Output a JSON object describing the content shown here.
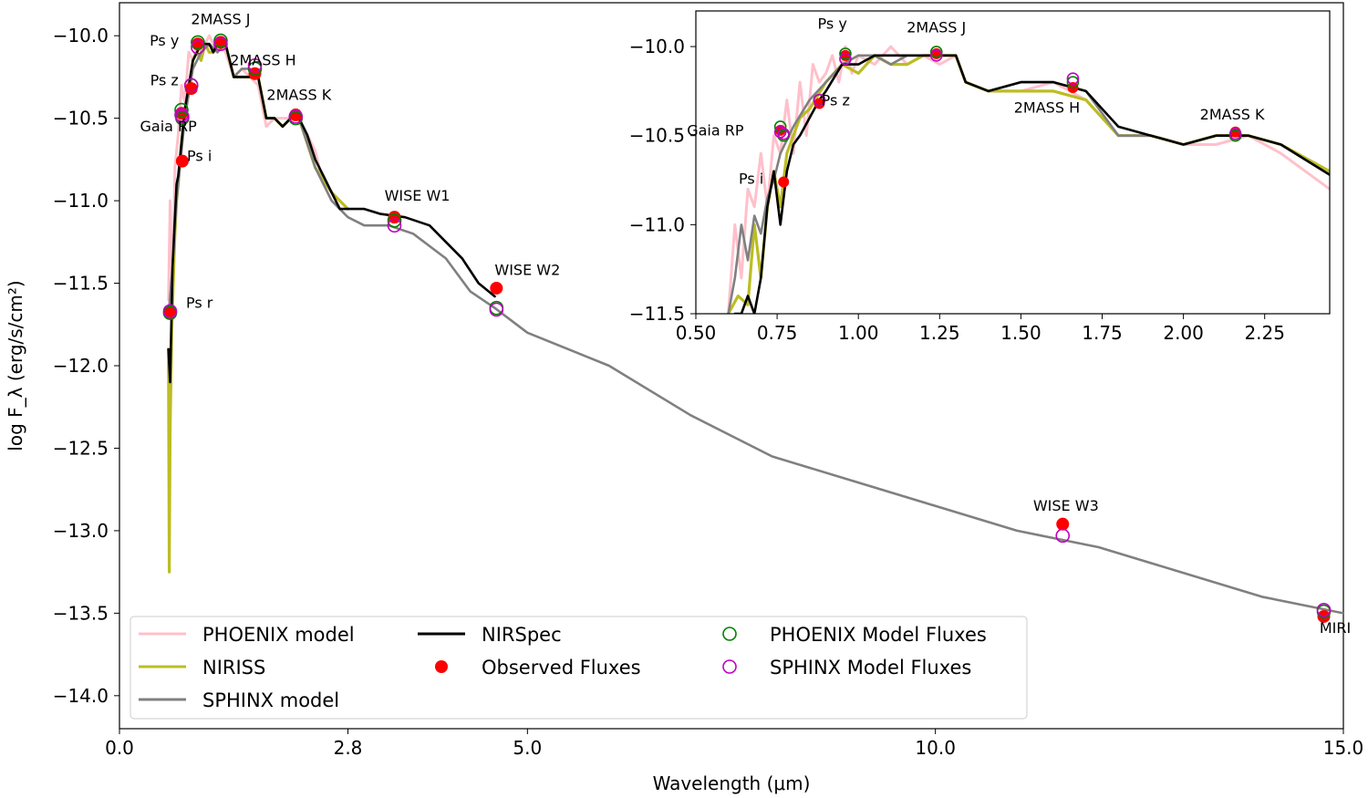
{
  "chart_data": [
    {
      "id": "main",
      "type": "line",
      "title": "",
      "xlabel": "Wavelength (μm)",
      "ylabel": "log F_λ (erg/s/cm²)",
      "xlim": [
        0,
        15
      ],
      "ylim": [
        -14.2,
        -9.8
      ],
      "xticks": [
        0,
        2.8,
        5,
        10,
        15
      ],
      "xtick_labels": [
        "0.0",
        "2.8",
        "5.0",
        "10.0",
        "15.0"
      ],
      "yticks": [
        -14.0,
        -13.5,
        -13.0,
        -12.5,
        -12.0,
        -11.5,
        -11.0,
        -10.5,
        -10.0
      ],
      "ytick_labels": [
        "−14.0",
        "−13.5",
        "−13.0",
        "−12.5",
        "−12.0",
        "−11.5",
        "−11.0",
        "−10.5",
        "−10.0"
      ],
      "series": [
        {
          "name": "PHOENIX model",
          "color": "#ffc0cb",
          "x": [
            0.6,
            0.62,
            0.65,
            0.68,
            0.72,
            0.76,
            0.8,
            0.85,
            0.9,
            0.95,
            1.0,
            1.05,
            1.1,
            1.2,
            1.25,
            1.3,
            1.4,
            1.5,
            1.6,
            1.7,
            1.8,
            1.9,
            2.0,
            2.1,
            2.2,
            2.3,
            2.4,
            2.5
          ],
          "y": [
            -11.6,
            -11.0,
            -11.6,
            -10.8,
            -10.6,
            -10.3,
            -10.4,
            -10.1,
            -10.15,
            -10.05,
            -10.1,
            -10.05,
            -10.0,
            -10.1,
            -10.05,
            -10.1,
            -10.25,
            -10.2,
            -10.25,
            -10.3,
            -10.55,
            -10.5,
            -10.5,
            -10.5,
            -10.5,
            -10.6,
            -10.7,
            -10.9
          ]
        },
        {
          "name": "NIRISS",
          "color": "#bcbd22",
          "x": [
            0.6,
            0.61,
            0.62,
            0.64,
            0.66,
            0.68,
            0.7,
            0.72,
            0.75,
            0.8,
            0.85,
            0.9,
            0.95,
            1.0,
            1.05,
            1.1,
            1.15,
            1.2,
            1.3,
            1.4,
            1.5,
            1.6,
            1.7,
            1.8,
            1.9,
            2.0,
            2.1,
            2.2,
            2.4,
            2.6,
            2.8
          ],
          "y": [
            -11.9,
            -13.25,
            -12.4,
            -11.8,
            -11.5,
            -11.2,
            -11.0,
            -10.9,
            -10.7,
            -10.45,
            -10.35,
            -10.15,
            -10.1,
            -10.15,
            -10.05,
            -10.1,
            -10.1,
            -10.05,
            -10.05,
            -10.25,
            -10.25,
            -10.25,
            -10.25,
            -10.5,
            -10.5,
            -10.55,
            -10.5,
            -10.5,
            -10.8,
            -10.95,
            -11.05
          ]
        },
        {
          "name": "SPHINX model",
          "color": "#808080",
          "x": [
            0.6,
            0.65,
            0.7,
            0.75,
            0.8,
            0.9,
            1.0,
            1.1,
            1.2,
            1.3,
            1.4,
            1.5,
            1.6,
            1.7,
            1.8,
            1.9,
            2.0,
            2.1,
            2.2,
            2.4,
            2.6,
            2.8,
            3.0,
            3.3,
            3.6,
            4.0,
            4.3,
            4.6,
            5.0,
            6.0,
            7.0,
            8.0,
            9.0,
            10.0,
            11.0,
            12.0,
            13.0,
            14.0,
            15.0
          ],
          "y": [
            -11.7,
            -11.4,
            -11.0,
            -10.75,
            -10.5,
            -10.2,
            -10.1,
            -10.05,
            -10.1,
            -10.05,
            -10.25,
            -10.2,
            -10.2,
            -10.25,
            -10.5,
            -10.5,
            -10.55,
            -10.5,
            -10.5,
            -10.8,
            -11.0,
            -11.1,
            -11.15,
            -11.15,
            -11.2,
            -11.35,
            -11.55,
            -11.65,
            -11.8,
            -12.0,
            -12.3,
            -12.55,
            -12.7,
            -12.85,
            -13.0,
            -13.1,
            -13.25,
            -13.4,
            -13.5
          ]
        },
        {
          "name": "NIRSpec",
          "color": "#000000",
          "x": [
            0.6,
            0.62,
            0.65,
            0.68,
            0.7,
            0.72,
            0.75,
            0.8,
            0.85,
            0.9,
            0.95,
            1.0,
            1.05,
            1.1,
            1.15,
            1.2,
            1.3,
            1.4,
            1.5,
            1.6,
            1.7,
            1.8,
            1.9,
            2.0,
            2.1,
            2.2,
            2.3,
            2.4,
            2.5,
            2.6,
            2.7,
            2.8,
            3.0,
            3.2,
            3.5,
            3.8,
            4.0,
            4.2,
            4.4,
            4.6
          ],
          "y": [
            -11.9,
            -12.1,
            -11.4,
            -11.1,
            -10.9,
            -10.85,
            -10.7,
            -10.45,
            -10.3,
            -10.15,
            -10.1,
            -10.05,
            -10.05,
            -10.05,
            -10.1,
            -10.05,
            -10.05,
            -10.25,
            -10.25,
            -10.25,
            -10.25,
            -10.5,
            -10.5,
            -10.55,
            -10.5,
            -10.5,
            -10.6,
            -10.75,
            -10.85,
            -10.95,
            -11.05,
            -11.05,
            -11.05,
            -11.08,
            -11.1,
            -11.15,
            -11.25,
            -11.35,
            -11.5,
            -11.58
          ]
        }
      ],
      "observed_fluxes": {
        "x": [
          0.62,
          0.76,
          0.77,
          0.88,
          0.96,
          1.24,
          1.66,
          2.16,
          3.37,
          4.62,
          11.56,
          14.76
        ],
        "y": [
          -11.68,
          -10.47,
          -10.76,
          -10.32,
          -10.05,
          -10.04,
          -10.23,
          -10.48,
          -11.1,
          -11.53,
          -12.96,
          -13.52
        ]
      },
      "phoenix_model_fluxes": {
        "x": [
          0.62,
          0.76,
          0.77,
          0.88,
          0.96,
          1.24,
          1.66,
          2.16,
          3.37,
          4.62,
          14.76
        ],
        "y": [
          -11.68,
          -10.45,
          -10.5,
          -10.3,
          -10.04,
          -10.03,
          -10.2,
          -10.5,
          -11.12,
          -11.65,
          -13.49
        ]
      },
      "sphinx_model_fluxes": {
        "x": [
          0.62,
          0.76,
          0.77,
          0.88,
          0.96,
          1.24,
          1.66,
          2.16,
          3.37,
          4.62,
          11.56,
          14.76
        ],
        "y": [
          -11.67,
          -10.48,
          -10.49,
          -10.3,
          -10.07,
          -10.05,
          -10.18,
          -10.49,
          -11.15,
          -11.66,
          -13.03,
          -13.48
        ]
      },
      "annotations": [
        {
          "text": "2MASS J",
          "x": 1.24,
          "y": -9.93
        },
        {
          "text": "Ps y",
          "x": 0.55,
          "y": -10.06
        },
        {
          "text": "2MASS H",
          "x": 1.76,
          "y": -10.18
        },
        {
          "text": "Ps z",
          "x": 0.55,
          "y": -10.3
        },
        {
          "text": "2MASS K",
          "x": 2.2,
          "y": -10.39
        },
        {
          "text": "Gaia RP",
          "x": 0.6,
          "y": -10.58
        },
        {
          "text": "Ps i",
          "x": 0.98,
          "y": -10.76
        },
        {
          "text": "WISE W1",
          "x": 3.65,
          "y": -11.0
        },
        {
          "text": "WISE W2",
          "x": 5.0,
          "y": -11.45
        },
        {
          "text": "Ps r",
          "x": 0.98,
          "y": -11.65
        },
        {
          "text": "WISE W3",
          "x": 11.6,
          "y": -12.88
        },
        {
          "text": "MIRI",
          "x": 14.9,
          "y": -13.62
        }
      ],
      "legend": {
        "placement": "lower-left",
        "entries": [
          {
            "label": "PHOENIX model",
            "kind": "line",
            "color": "#ffc0cb"
          },
          {
            "label": "NIRISS",
            "kind": "line",
            "color": "#bcbd22"
          },
          {
            "label": "SPHINX model",
            "kind": "line",
            "color": "#808080"
          },
          {
            "label": "NIRSpec",
            "kind": "line",
            "color": "#000000"
          },
          {
            "label": "Observed Fluxes",
            "kind": "filled-dot",
            "color": "#ff0000"
          },
          {
            "label": "PHOENIX Model Fluxes",
            "kind": "open-circle",
            "color": "#008000"
          },
          {
            "label": "SPHINX Model Fluxes",
            "kind": "open-circle",
            "color": "#bf00bf"
          }
        ]
      }
    },
    {
      "id": "inset",
      "type": "line",
      "xlim": [
        0.5,
        2.45
      ],
      "ylim": [
        -11.5,
        -9.8
      ],
      "xticks": [
        0.5,
        0.75,
        1.0,
        1.25,
        1.5,
        1.75,
        2.0,
        2.25
      ],
      "xtick_labels": [
        "0.50",
        "0.75",
        "1.00",
        "1.25",
        "1.50",
        "1.75",
        "2.00",
        "2.25"
      ],
      "yticks": [
        -11.5,
        -11.0,
        -10.5,
        -10.0
      ],
      "ytick_labels": [
        "−11.5",
        "−11.0",
        "−10.5",
        "−10.0"
      ],
      "series": [
        {
          "name": "PHOENIX model",
          "color": "#ffc0cb",
          "x": [
            0.6,
            0.62,
            0.64,
            0.66,
            0.68,
            0.7,
            0.72,
            0.74,
            0.76,
            0.78,
            0.8,
            0.82,
            0.84,
            0.86,
            0.88,
            0.9,
            0.92,
            0.94,
            0.96,
            0.98,
            1.0,
            1.05,
            1.1,
            1.15,
            1.2,
            1.25,
            1.3,
            1.33,
            1.4,
            1.5,
            1.6,
            1.7,
            1.8,
            1.9,
            2.0,
            2.1,
            2.2,
            2.3,
            2.45
          ],
          "y": [
            -11.5,
            -11.0,
            -11.3,
            -10.8,
            -10.9,
            -10.6,
            -10.9,
            -10.5,
            -10.6,
            -10.3,
            -10.6,
            -10.2,
            -10.5,
            -10.1,
            -10.2,
            -10.15,
            -10.05,
            -10.2,
            -10.0,
            -10.15,
            -10.05,
            -10.1,
            -10.0,
            -10.1,
            -10.05,
            -10.1,
            -10.05,
            -10.2,
            -10.25,
            -10.25,
            -10.2,
            -10.3,
            -10.5,
            -10.5,
            -10.55,
            -10.55,
            -10.5,
            -10.6,
            -10.8
          ]
        },
        {
          "name": "NIRISS",
          "color": "#bcbd22",
          "x": [
            0.6,
            0.63,
            0.66,
            0.68,
            0.7,
            0.72,
            0.74,
            0.76,
            0.78,
            0.8,
            0.82,
            0.85,
            0.9,
            0.95,
            1.0,
            1.05,
            1.1,
            1.15,
            1.2,
            1.25,
            1.3,
            1.33,
            1.4,
            1.5,
            1.6,
            1.7,
            1.8,
            1.9,
            2.0,
            2.1,
            2.2,
            2.3,
            2.45
          ],
          "y": [
            -11.5,
            -11.4,
            -11.45,
            -11.0,
            -11.3,
            -10.9,
            -10.7,
            -10.9,
            -10.6,
            -10.5,
            -10.4,
            -10.35,
            -10.2,
            -10.1,
            -10.15,
            -10.05,
            -10.1,
            -10.1,
            -10.05,
            -10.05,
            -10.05,
            -10.2,
            -10.25,
            -10.25,
            -10.25,
            -10.3,
            -10.5,
            -10.5,
            -10.55,
            -10.5,
            -10.5,
            -10.55,
            -10.7
          ]
        },
        {
          "name": "SPHINX model",
          "color": "#808080",
          "x": [
            0.6,
            0.62,
            0.64,
            0.66,
            0.68,
            0.7,
            0.72,
            0.74,
            0.76,
            0.8,
            0.85,
            0.9,
            0.95,
            1.0,
            1.05,
            1.1,
            1.15,
            1.2,
            1.25,
            1.3,
            1.33,
            1.4,
            1.5,
            1.6,
            1.7,
            1.8,
            1.9,
            2.0,
            2.1,
            2.2,
            2.3,
            2.45
          ],
          "y": [
            -11.5,
            -11.3,
            -11.0,
            -11.2,
            -10.95,
            -11.05,
            -10.85,
            -10.75,
            -10.6,
            -10.45,
            -10.3,
            -10.2,
            -10.1,
            -10.05,
            -10.05,
            -10.1,
            -10.05,
            -10.05,
            -10.05,
            -10.05,
            -10.2,
            -10.25,
            -10.2,
            -10.2,
            -10.25,
            -10.5,
            -10.5,
            -10.55,
            -10.5,
            -10.5,
            -10.55,
            -10.72
          ]
        },
        {
          "name": "NIRSpec",
          "color": "#000000",
          "x": [
            0.62,
            0.64,
            0.66,
            0.68,
            0.7,
            0.72,
            0.74,
            0.76,
            0.78,
            0.8,
            0.82,
            0.85,
            0.88,
            0.9,
            0.95,
            1.0,
            1.05,
            1.1,
            1.15,
            1.2,
            1.25,
            1.3,
            1.33,
            1.4,
            1.5,
            1.6,
            1.7,
            1.8,
            1.9,
            2.0,
            2.1,
            2.2,
            2.3,
            2.45
          ],
          "y": [
            -11.5,
            -11.5,
            -11.4,
            -11.5,
            -11.3,
            -10.9,
            -10.7,
            -11.0,
            -10.7,
            -10.55,
            -10.5,
            -10.4,
            -10.3,
            -10.25,
            -10.1,
            -10.1,
            -10.05,
            -10.05,
            -10.05,
            -10.05,
            -10.05,
            -10.05,
            -10.2,
            -10.25,
            -10.2,
            -10.2,
            -10.25,
            -10.45,
            -10.5,
            -10.55,
            -10.5,
            -10.5,
            -10.55,
            -10.72
          ]
        }
      ],
      "observed_fluxes": {
        "x": [
          0.62,
          0.76,
          0.77,
          0.88,
          0.96,
          1.24,
          1.66,
          2.16
        ],
        "y": [
          -11.68,
          -10.47,
          -10.76,
          -10.32,
          -10.05,
          -10.04,
          -10.23,
          -10.48
        ]
      },
      "phoenix_model_fluxes": {
        "x": [
          0.62,
          0.76,
          0.77,
          0.88,
          0.96,
          1.24,
          1.66,
          2.16
        ],
        "y": [
          -11.68,
          -10.45,
          -10.5,
          -10.3,
          -10.04,
          -10.03,
          -10.2,
          -10.5
        ]
      },
      "sphinx_model_fluxes": {
        "x": [
          0.62,
          0.76,
          0.77,
          0.88,
          0.96,
          1.24,
          1.66,
          2.16
        ],
        "y": [
          -11.67,
          -10.48,
          -10.49,
          -10.3,
          -10.07,
          -10.05,
          -10.18,
          -10.49
        ]
      },
      "annotations": [
        {
          "text": "Ps y",
          "x": 0.92,
          "y": -9.9
        },
        {
          "text": "2MASS J",
          "x": 1.24,
          "y": -9.92
        },
        {
          "text": "Ps z",
          "x": 0.93,
          "y": -10.33
        },
        {
          "text": "2MASS H",
          "x": 1.58,
          "y": -10.37
        },
        {
          "text": "2MASS K",
          "x": 2.15,
          "y": -10.41
        },
        {
          "text": "Gaia RP",
          "x": 0.56,
          "y": -10.5
        },
        {
          "text": "Ps i",
          "x": 0.67,
          "y": -10.77
        }
      ]
    }
  ]
}
